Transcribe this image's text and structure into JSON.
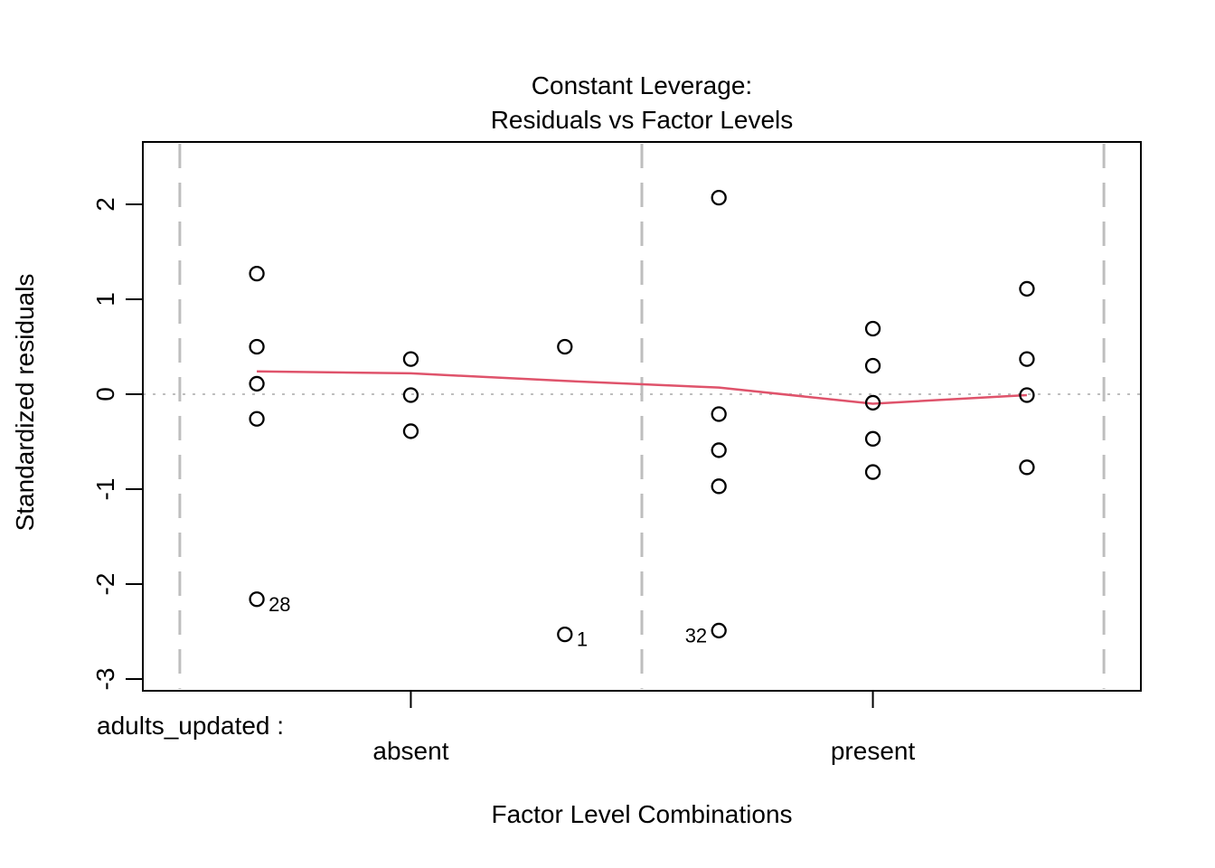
{
  "figure": {
    "title_line1": "Constant Leverage:",
    "title_line2": "Residuals vs Factor Levels",
    "xlabel": "Factor Level Combinations",
    "ylabel": "Standardized residuals",
    "factor_prefix": "adults_updated :"
  },
  "chart_data": {
    "type": "scatter",
    "title": "Constant Leverage:\nResiduals vs Factor Levels",
    "xlabel": "Factor Level Combinations",
    "ylabel": "Standardized residuals",
    "factor_axis_prefix": "adults_updated :",
    "x_tick_labels": [
      {
        "pos": 2,
        "label": "absent"
      },
      {
        "pos": 5,
        "label": "present"
      }
    ],
    "y_ticks": [
      2,
      1,
      0,
      -1,
      -2,
      -3
    ],
    "xlim": [
      0.26,
      6.74
    ],
    "ylim": [
      -3.124,
      2.657
    ],
    "separator_positions": [
      0.5,
      3.5,
      6.5
    ],
    "zero_line_y": 0,
    "grid": false,
    "legend": "none",
    "groups": [
      {
        "pos": 1,
        "values": [
          1.27,
          0.5,
          0.11,
          -0.26
        ]
      },
      {
        "pos": 2,
        "values": [
          0.37,
          -0.01,
          -0.39
        ]
      },
      {
        "pos": 3,
        "values": [
          0.5
        ]
      },
      {
        "pos": 4,
        "values": [
          2.07,
          -0.21,
          -0.59,
          -0.97
        ]
      },
      {
        "pos": 5,
        "values": [
          0.69,
          0.3,
          -0.09,
          -0.47,
          -0.82
        ]
      },
      {
        "pos": 6,
        "values": [
          1.11,
          0.37,
          -0.01,
          -0.77
        ]
      }
    ],
    "labeled_points": [
      {
        "pos": 1,
        "value": -2.16,
        "label": "28",
        "side": "right"
      },
      {
        "pos": 3,
        "value": -2.53,
        "label": "1",
        "side": "right"
      },
      {
        "pos": 4,
        "value": -2.49,
        "label": "32",
        "side": "left"
      }
    ],
    "smooth_line": {
      "x": [
        1,
        2,
        3,
        4,
        5,
        6
      ],
      "y": [
        0.24,
        0.22,
        0.14,
        0.07,
        -0.1,
        -0.01
      ]
    },
    "colors": {
      "smooth_line": "#DF536B",
      "grid_gray": "#BEBEBE",
      "points": "#000000",
      "text": "#000000"
    }
  }
}
